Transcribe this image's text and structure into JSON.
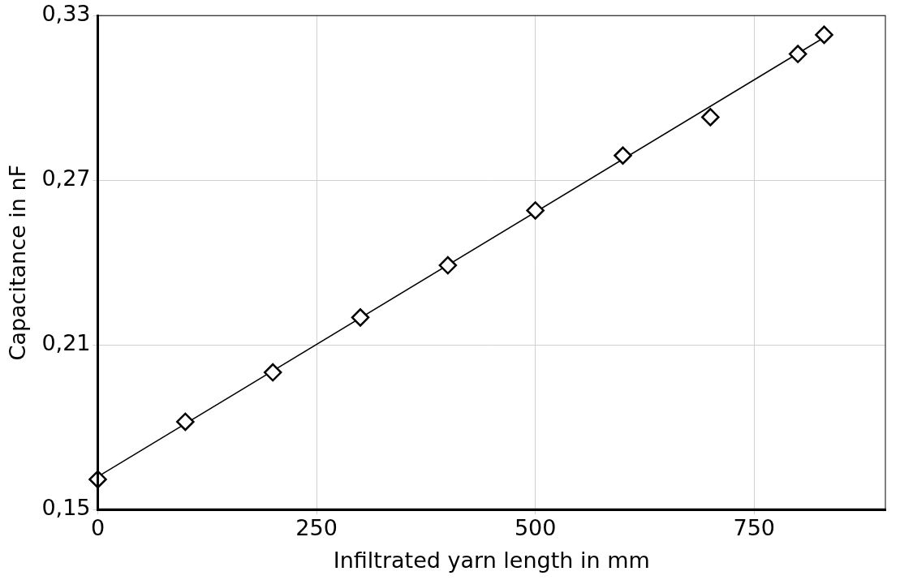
{
  "chart_data": {
    "type": "scatter",
    "x_label": "Infiltrated yarn length in mm",
    "y_label": "Capacitance in nF",
    "xlim": [
      0,
      900
    ],
    "xticks": [
      0,
      250,
      500,
      750
    ],
    "ylim": [
      0.15,
      0.33
    ],
    "yticks": [
      {
        "value": 0.15,
        "label": "0,15"
      },
      {
        "value": 0.21,
        "label": "0,21"
      },
      {
        "value": 0.27,
        "label": "0,27"
      },
      {
        "value": 0.33,
        "label": "0,33"
      }
    ],
    "grid": true,
    "series": [
      {
        "type": "scatter",
        "marker": "diamond",
        "color": "#000000",
        "x": [
          0,
          100,
          200,
          300,
          400,
          500,
          600,
          700,
          800,
          830
        ],
        "values": [
          0.161,
          0.182,
          0.2,
          0.22,
          0.239,
          0.259,
          0.279,
          0.293,
          0.316,
          0.323
        ]
      },
      {
        "type": "line",
        "line_style": "solid",
        "color": "#000000",
        "x": [
          0,
          830
        ],
        "values": [
          0.162,
          0.322
        ]
      }
    ]
  }
}
